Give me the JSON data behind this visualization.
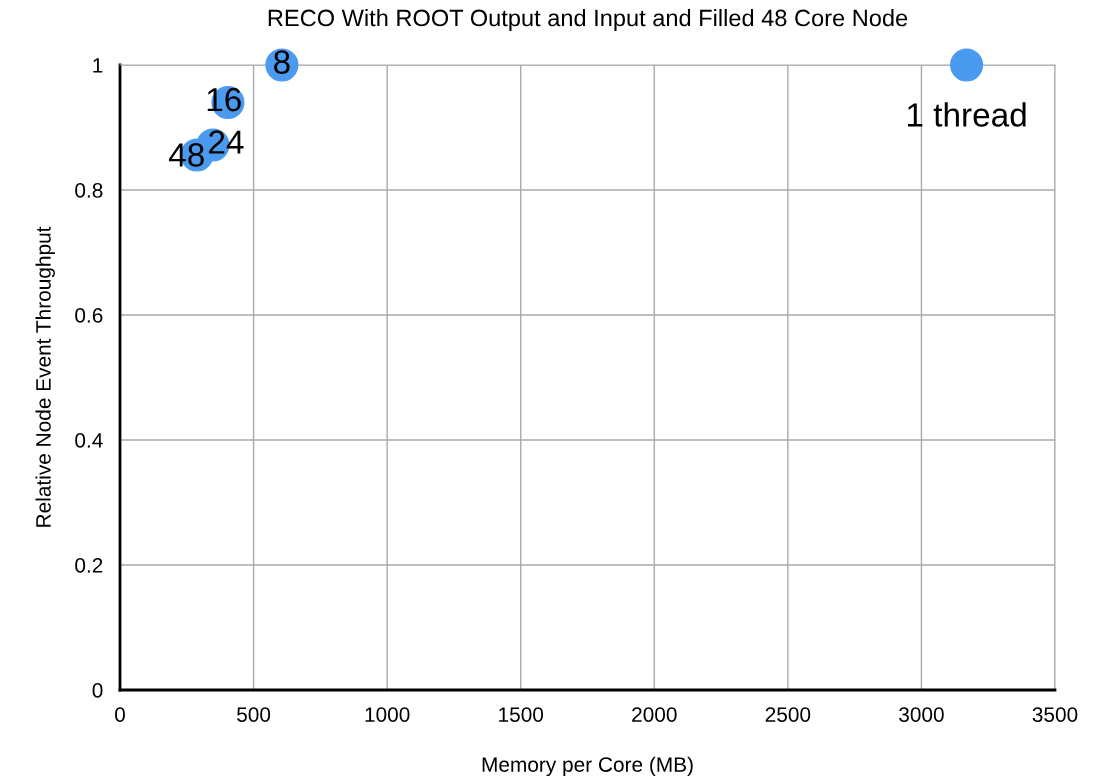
{
  "chart_data": {
    "type": "scatter",
    "title": "RECO With ROOT Output and Input and Filled 48 Core Node",
    "xlabel": "Memory per Core (MB)",
    "ylabel": "Relative Node Event Throughput",
    "x": [
      606,
      404,
      348,
      288,
      3169
    ],
    "series": [
      {
        "color": "#4a9af0",
        "values": [
          1.0,
          0.94,
          0.872,
          0.856,
          1.0
        ]
      }
    ],
    "annotations": [
      {
        "text": "8",
        "x": 606,
        "y": 1.0
      },
      {
        "text": "16",
        "x": 404,
        "y": 0.94
      },
      {
        "text": "24",
        "x": 348,
        "y": 0.872
      },
      {
        "text": "48",
        "x": 288,
        "y": 0.856
      },
      {
        "text": "1 thread",
        "x": 3169,
        "y": 1.0
      }
    ],
    "xlim": [
      0,
      3500
    ],
    "xticks": [
      0,
      500,
      1000,
      1500,
      2000,
      2500,
      3000,
      3500
    ],
    "ylim": [
      0,
      1
    ],
    "yticks": [
      0,
      0.2,
      0.4,
      0.6,
      0.8,
      1
    ],
    "grid": true,
    "marker": "circle"
  }
}
